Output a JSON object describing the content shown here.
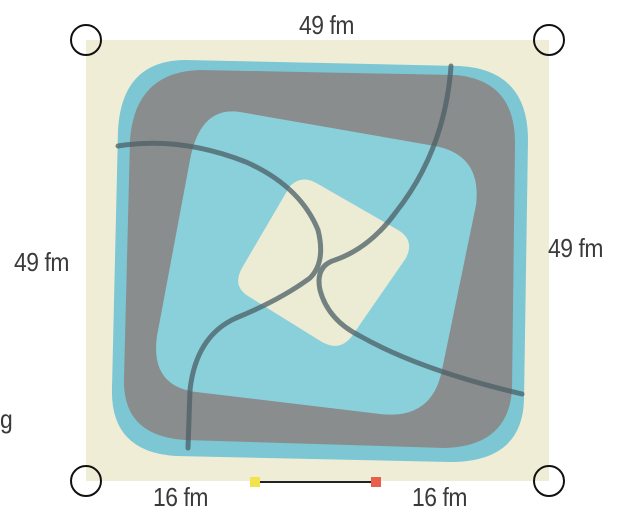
{
  "labels": {
    "top": "49 fm",
    "left": "49 fm",
    "right": "49 fm",
    "bottom_left": "16 fm",
    "bottom_right": "16 fm",
    "edge_fragment": "g"
  },
  "colors": {
    "board": "#efedd6",
    "outer_ring": "#7cc7d3",
    "dark_band": "#8a8d8d",
    "inner_tile": "#8ad0db",
    "center_tile": "#efecd4",
    "curve": "#4b5f66",
    "corner_handle": "#111111",
    "scale_start": "#f2e34a",
    "scale_end": "#e8604c"
  },
  "icons": {
    "corner_handle": "circle-handle-icon",
    "scale_bar": "scale-bar-icon"
  }
}
